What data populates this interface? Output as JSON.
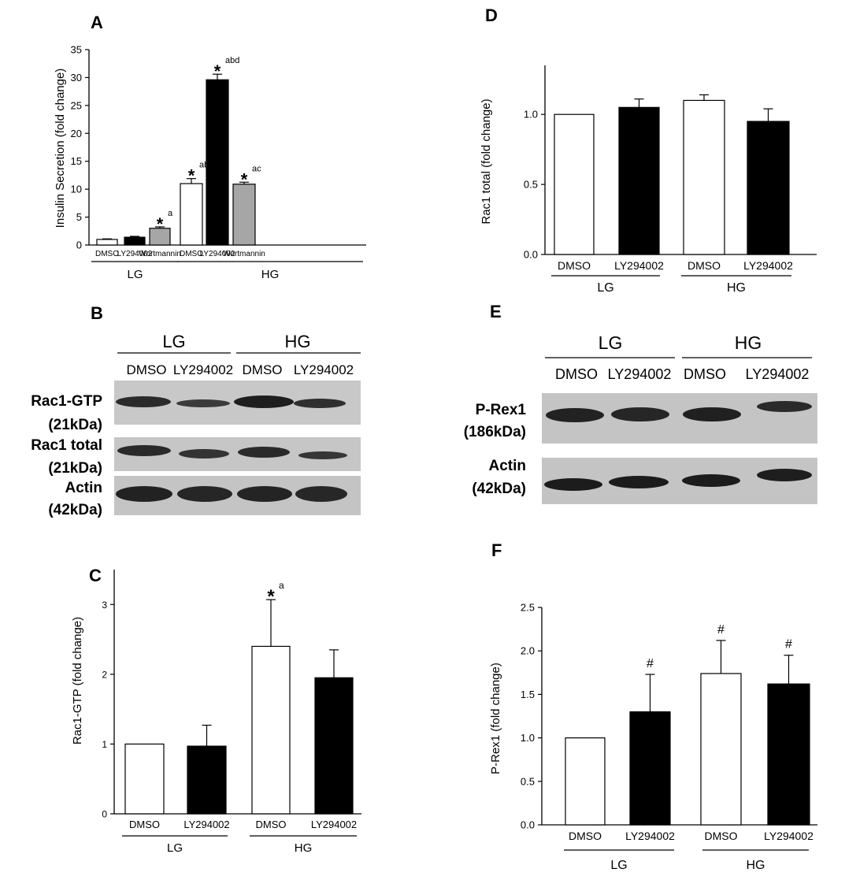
{
  "panels": {
    "A": {
      "letter": "A"
    },
    "B": {
      "letter": "B",
      "groups": [
        "LG",
        "HG"
      ],
      "lanes": [
        "DMSO",
        "LY294002",
        "DMSO",
        "LY294002"
      ],
      "blots": [
        {
          "label1": "Rac1-GTP",
          "label2": "(21kDa)"
        },
        {
          "label1": "Rac1 total",
          "label2": "(21kDa)"
        },
        {
          "label1": "Actin",
          "label2": "(42kDa)"
        }
      ]
    },
    "C": {
      "letter": "C"
    },
    "D": {
      "letter": "D"
    },
    "E": {
      "letter": "E",
      "groups": [
        "LG",
        "HG"
      ],
      "lanes": [
        "DMSO",
        "LY294002",
        "DMSO",
        "LY294002"
      ],
      "blots": [
        {
          "label1": "P-Rex1",
          "label2": "(186kDa)"
        },
        {
          "label1": "Actin",
          "label2": "(42kDa)"
        }
      ]
    },
    "F": {
      "letter": "F"
    }
  },
  "chart_data": [
    {
      "id": "A",
      "type": "bar",
      "ylabel": "Insulin Secretion (fold change)",
      "ylim": [
        0,
        35
      ],
      "yticks": [
        "0",
        "5",
        "10",
        "15",
        "20",
        "25",
        "30",
        "35"
      ],
      "categories": [
        "DMSO",
        "LY294002",
        "Wortmannin",
        "DMSO",
        "LY294002",
        "Wortmannin"
      ],
      "groups": [
        {
          "name": "LG",
          "members": [
            0,
            1,
            2
          ]
        },
        {
          "name": "HG",
          "members": [
            3,
            4,
            5
          ]
        }
      ],
      "values": [
        1.0,
        1.4,
        3.0,
        11.0,
        29.6,
        10.9
      ],
      "errors": [
        0.1,
        0.15,
        0.25,
        0.9,
        1.0,
        0.35
      ],
      "fills": [
        "#ffffff",
        "#000000",
        "#a6a6a6",
        "#ffffff",
        "#000000",
        "#a6a6a6"
      ],
      "annotations": [
        {
          "index": 2,
          "star": "*",
          "letters": "a"
        },
        {
          "index": 3,
          "star": "*",
          "letters": "abc"
        },
        {
          "index": 4,
          "star": "*",
          "letters": "abd"
        },
        {
          "index": 5,
          "star": "*",
          "letters": "ac"
        }
      ]
    },
    {
      "id": "C",
      "type": "bar",
      "ylabel": "Rac1-GTP (fold change)",
      "ylim": [
        0,
        3.5
      ],
      "yticks": [
        "0",
        "1",
        "2",
        "3"
      ],
      "categories": [
        "DMSO",
        "LY294002",
        "DMSO",
        "LY294002"
      ],
      "groups": [
        {
          "name": "LG",
          "members": [
            0,
            1
          ]
        },
        {
          "name": "HG",
          "members": [
            2,
            3
          ]
        }
      ],
      "values": [
        1.0,
        0.97,
        2.4,
        1.95
      ],
      "errors": [
        0,
        0.3,
        0.67,
        0.4
      ],
      "fills": [
        "#ffffff",
        "#000000",
        "#ffffff",
        "#000000"
      ],
      "annotations": [
        {
          "index": 2,
          "star": "*",
          "letters": "a"
        }
      ]
    },
    {
      "id": "D",
      "type": "bar",
      "ylabel": "Rac1 total (fold change)",
      "ylim": [
        0,
        1.35
      ],
      "yticks": [
        "0.0",
        "0.5",
        "1.0"
      ],
      "categories": [
        "DMSO",
        "LY294002",
        "DMSO",
        "LY294002"
      ],
      "groups": [
        {
          "name": "LG",
          "members": [
            0,
            1
          ]
        },
        {
          "name": "HG",
          "members": [
            2,
            3
          ]
        }
      ],
      "values": [
        1.0,
        1.05,
        1.1,
        0.95
      ],
      "errors": [
        0,
        0.06,
        0.04,
        0.09
      ],
      "fills": [
        "#ffffff",
        "#000000",
        "#ffffff",
        "#000000"
      ],
      "annotations": []
    },
    {
      "id": "F",
      "type": "bar",
      "ylabel": "P-Rex1 (fold change)",
      "ylim": [
        0,
        2.5
      ],
      "yticks": [
        "0.0",
        "0.5",
        "1.0",
        "1.5",
        "2.0",
        "2.5"
      ],
      "categories": [
        "DMSO",
        "LY294002",
        "DMSO",
        "LY294002"
      ],
      "groups": [
        {
          "name": "LG",
          "members": [
            0,
            1
          ]
        },
        {
          "name": "HG",
          "members": [
            2,
            3
          ]
        }
      ],
      "values": [
        1.0,
        1.3,
        1.74,
        1.62
      ],
      "errors": [
        0,
        0.43,
        0.38,
        0.33
      ],
      "fills": [
        "#ffffff",
        "#000000",
        "#ffffff",
        "#000000"
      ],
      "annotations": [
        {
          "index": 1,
          "star": "#",
          "letters": ""
        },
        {
          "index": 2,
          "star": "#",
          "letters": ""
        },
        {
          "index": 3,
          "star": "#",
          "letters": ""
        }
      ]
    }
  ]
}
